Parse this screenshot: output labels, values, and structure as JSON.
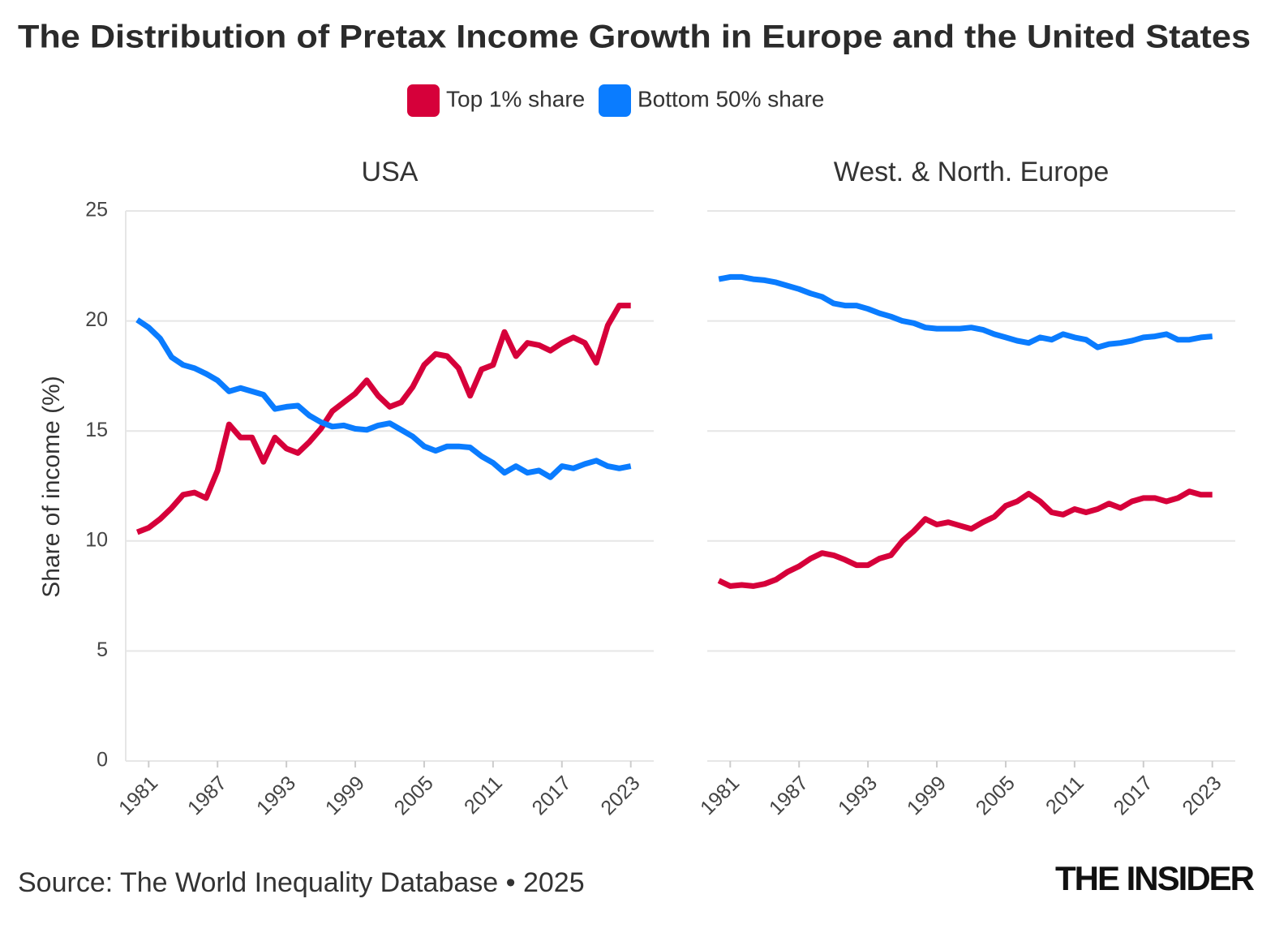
{
  "title": "The Distribution of Pretax Income Growth in Europe and the United States",
  "source": "Source: The World Inequality Database • 2025",
  "brand": "THE INSIDER",
  "chart_data": [
    {
      "type": "line",
      "title": "USA",
      "ylabel": "Share of income (%)",
      "x": [
        1980,
        1981,
        1982,
        1983,
        1984,
        1985,
        1986,
        1987,
        1988,
        1989,
        1990,
        1991,
        1992,
        1993,
        1994,
        1995,
        1996,
        1997,
        1998,
        1999,
        2000,
        2001,
        2002,
        2003,
        2004,
        2005,
        2006,
        2007,
        2008,
        2009,
        2010,
        2011,
        2012,
        2013,
        2014,
        2015,
        2016,
        2017,
        2018,
        2019,
        2020,
        2021,
        2022,
        2023
      ],
      "series": [
        {
          "name": "Top 1% share",
          "color": "#d6003a",
          "values": [
            10.4,
            10.6,
            11.0,
            11.5,
            12.1,
            12.2,
            11.95,
            13.2,
            15.3,
            14.7,
            14.7,
            13.6,
            14.7,
            14.2,
            14.0,
            14.5,
            15.1,
            15.9,
            16.3,
            16.7,
            17.3,
            16.6,
            16.1,
            16.3,
            17.0,
            18.0,
            18.5,
            18.4,
            17.85,
            16.6,
            17.8,
            18.0,
            19.5,
            18.4,
            19.0,
            18.9,
            18.65,
            19.0,
            19.25,
            19.0,
            18.1,
            19.8,
            20.7,
            20.7
          ]
        },
        {
          "name": "Bottom 50% share",
          "color": "#0a7cff",
          "values": [
            20.05,
            19.7,
            19.2,
            18.35,
            18.0,
            17.85,
            17.6,
            17.3,
            16.8,
            16.95,
            16.8,
            16.65,
            16.0,
            16.1,
            16.15,
            15.7,
            15.4,
            15.2,
            15.25,
            15.1,
            15.05,
            15.25,
            15.35,
            15.05,
            14.75,
            14.3,
            14.1,
            14.3,
            14.3,
            14.25,
            13.85,
            13.55,
            13.1,
            13.4,
            13.1,
            13.2,
            12.9,
            13.4,
            13.3,
            13.5,
            13.65,
            13.4,
            13.3,
            13.4
          ]
        }
      ],
      "xlim": [
        1979,
        2025
      ],
      "xticks": [
        1981,
        1987,
        1993,
        1999,
        2005,
        2011,
        2017,
        2023
      ],
      "ylim": [
        0,
        25
      ],
      "yticks": [
        0,
        5,
        10,
        15,
        20,
        25
      ],
      "grid": true
    },
    {
      "type": "line",
      "title": "West. & North. Europe",
      "x": [
        1980,
        1981,
        1982,
        1983,
        1984,
        1985,
        1986,
        1987,
        1988,
        1989,
        1990,
        1991,
        1992,
        1993,
        1994,
        1995,
        1996,
        1997,
        1998,
        1999,
        2000,
        2001,
        2002,
        2003,
        2004,
        2005,
        2006,
        2007,
        2008,
        2009,
        2010,
        2011,
        2012,
        2013,
        2014,
        2015,
        2016,
        2017,
        2018,
        2019,
        2020,
        2021,
        2022,
        2023
      ],
      "series": [
        {
          "name": "Top 1% share",
          "color": "#d6003a",
          "values": [
            8.2,
            7.95,
            8.0,
            7.95,
            8.05,
            8.25,
            8.6,
            8.85,
            9.2,
            9.45,
            9.35,
            9.15,
            8.9,
            8.9,
            9.2,
            9.35,
            10.0,
            10.45,
            11.0,
            10.75,
            10.85,
            10.7,
            10.55,
            10.85,
            11.1,
            11.6,
            11.8,
            12.15,
            11.8,
            11.3,
            11.2,
            11.45,
            11.3,
            11.45,
            11.7,
            11.5,
            11.8,
            11.95,
            11.95,
            11.8,
            11.95,
            12.25,
            12.1,
            12.1
          ]
        },
        {
          "name": "Bottom 50% share",
          "color": "#0a7cff",
          "values": [
            21.9,
            22.0,
            22.0,
            21.9,
            21.85,
            21.75,
            21.6,
            21.45,
            21.25,
            21.1,
            20.8,
            20.7,
            20.7,
            20.55,
            20.35,
            20.2,
            20.0,
            19.9,
            19.7,
            19.65,
            19.65,
            19.65,
            19.7,
            19.6,
            19.4,
            19.25,
            19.1,
            19.0,
            19.25,
            19.15,
            19.4,
            19.25,
            19.15,
            18.8,
            18.95,
            19.0,
            19.1,
            19.25,
            19.3,
            19.4,
            19.15,
            19.15,
            19.25,
            19.3
          ]
        }
      ],
      "xlim": [
        1979,
        2025
      ],
      "xticks": [
        1981,
        1987,
        1993,
        1999,
        2005,
        2011,
        2017,
        2023
      ],
      "ylim": [
        0,
        25
      ],
      "yticks": [
        0,
        5,
        10,
        15,
        20,
        25
      ],
      "grid": true
    }
  ]
}
